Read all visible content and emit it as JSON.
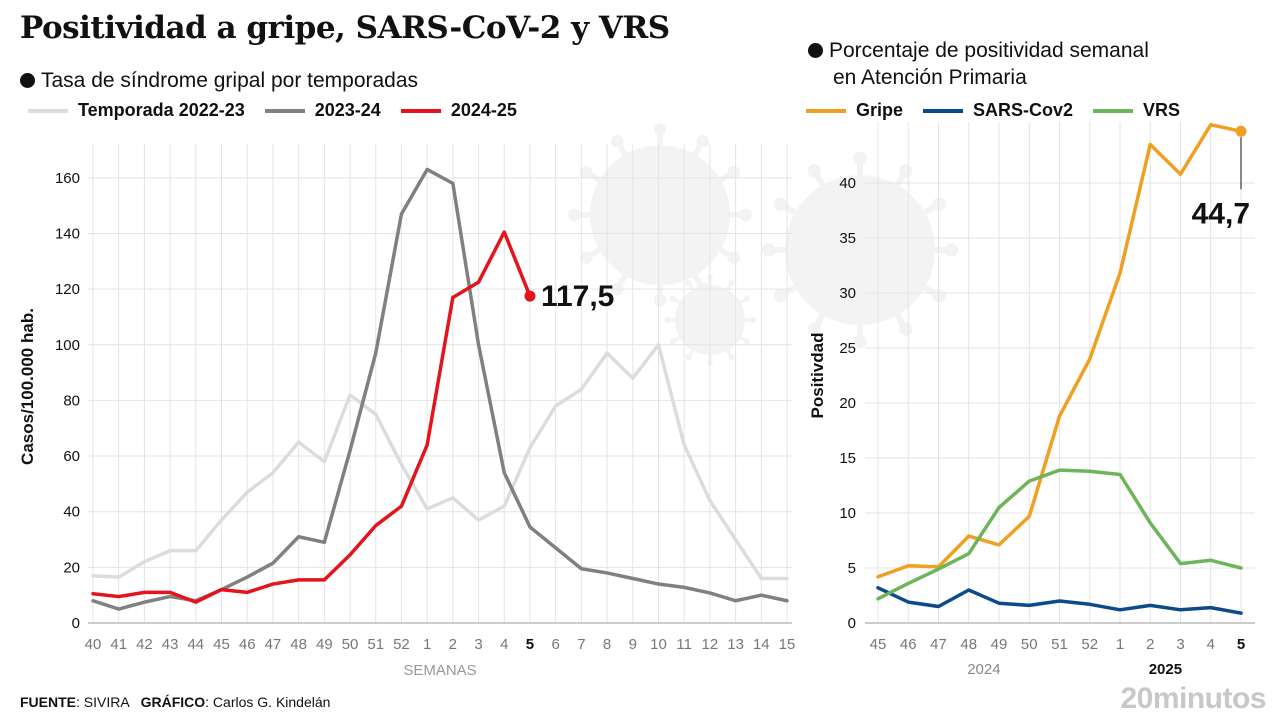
{
  "title": "Positividad a gripe, SARS-CoV-2 y VRS",
  "left_subtitle": "Tasa de síndrome gripal por temporadas",
  "right_subtitle_line1": "Porcentaje de positividad semanal",
  "right_subtitle_line2": "en Atención Primaria",
  "footer": {
    "source_label": "FUENTE",
    "source_value": ": SIVIRA",
    "graphic_label": "GRÁFICO",
    "graphic_value": ": Carlos G. Kindelán"
  },
  "brand": "20minutos",
  "chart_data": [
    {
      "type": "line",
      "title": "Tasa de síndrome gripal por temporadas",
      "xlabel": "SEMANAS",
      "ylabel": "Casos/100.000 hab.",
      "ylim": [
        0,
        170
      ],
      "yticks": [
        0,
        20,
        40,
        60,
        80,
        100,
        120,
        140,
        160
      ],
      "categories": [
        "40",
        "41",
        "42",
        "43",
        "44",
        "45",
        "46",
        "47",
        "48",
        "49",
        "50",
        "51",
        "52",
        "1",
        "2",
        "3",
        "4",
        "5",
        "6",
        "7",
        "8",
        "9",
        "10",
        "11",
        "12",
        "13",
        "14",
        "15"
      ],
      "highlight_category": "5",
      "grid": true,
      "legend": "top",
      "series": [
        {
          "name": "Temporada 2022-23",
          "color": "#dcdcdc",
          "values": [
            17,
            16.5,
            22,
            26,
            26,
            37,
            47,
            54,
            65,
            58,
            82,
            75,
            57,
            41,
            45,
            37,
            42,
            63,
            78,
            84,
            97,
            88,
            100,
            64,
            44,
            30,
            16,
            16
          ]
        },
        {
          "name": "2023-24",
          "color": "#808080",
          "values": [
            8,
            5,
            7.5,
            9.5,
            8,
            12,
            16.5,
            21.5,
            31,
            29,
            62,
            97,
            147,
            163,
            158,
            100,
            54,
            34.5,
            27,
            19.5,
            18,
            16,
            14,
            12.8,
            10.8,
            8,
            10,
            8
          ]
        },
        {
          "name": "2024-25",
          "color": "#e4141c",
          "values": [
            10.5,
            9.5,
            11,
            11,
            7.5,
            12,
            11,
            14,
            15.5,
            15.5,
            24.5,
            35,
            42,
            64,
            117,
            122.5,
            140.5,
            117.5,
            null,
            null,
            null,
            null,
            null,
            null,
            null,
            null,
            null,
            null
          ]
        }
      ],
      "end_label": "117,5"
    },
    {
      "type": "line",
      "title": "Porcentaje de positividad semanal en Atención Primaria",
      "xlabel": "",
      "ylabel": "Positivdad",
      "ylim": [
        0,
        45
      ],
      "yticks": [
        0,
        5,
        10,
        15,
        20,
        25,
        30,
        35,
        40
      ],
      "categories": [
        "45",
        "46",
        "47",
        "48",
        "49",
        "50",
        "51",
        "52",
        "1",
        "2",
        "3",
        "4",
        "5"
      ],
      "highlight_category": "5",
      "year_labels": [
        "2024",
        "2025"
      ],
      "grid": true,
      "legend": "top",
      "series": [
        {
          "name": "Gripe",
          "color": "#f0a020",
          "values": [
            4.2,
            5.2,
            5.1,
            7.9,
            7.1,
            9.7,
            18.8,
            24,
            31.8,
            43.5,
            40.8,
            45.3,
            44.7
          ]
        },
        {
          "name": "SARS-Cov2",
          "color": "#0c4a8c",
          "values": [
            3.2,
            1.9,
            1.5,
            3.0,
            1.8,
            1.6,
            2.0,
            1.7,
            1.2,
            1.6,
            1.2,
            1.4,
            0.9
          ]
        },
        {
          "name": "VRS",
          "color": "#6db45a",
          "values": [
            2.2,
            3.6,
            4.9,
            6.3,
            10.5,
            12.9,
            13.9,
            13.8,
            13.5,
            9.1,
            5.4,
            5.7,
            5.0
          ]
        }
      ],
      "end_label": "44,7"
    }
  ]
}
